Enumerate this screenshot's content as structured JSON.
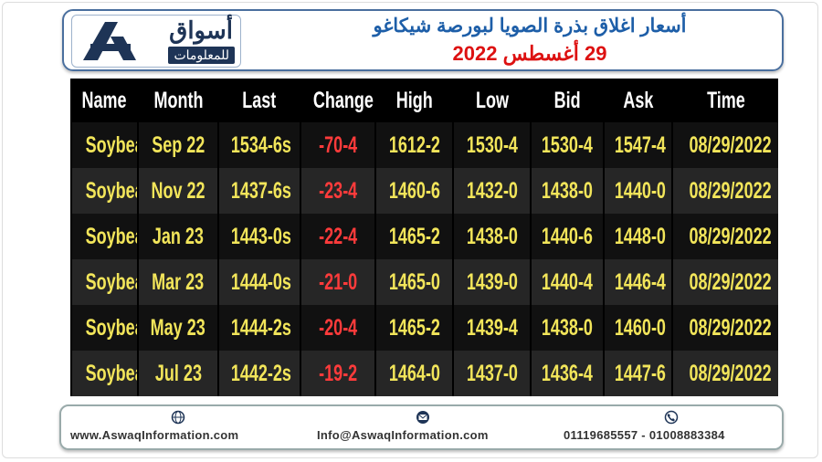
{
  "header": {
    "logo": {
      "name": "أسواق",
      "subtitle": "للمعلومات"
    },
    "title": "أسعار اغلاق بذرة الصويا لبورصة شيكاغو",
    "date": "29 أغسطس 2022"
  },
  "table": {
    "columns": [
      "Name",
      "Month",
      "Last",
      "Change",
      "High",
      "Low",
      "Bid",
      "Ask",
      "Time"
    ],
    "rows": [
      [
        "Soybean",
        "Sep 22",
        "1534-6s",
        "-70-4",
        "1612-2",
        "1530-4",
        "1530-4",
        "1547-4",
        "08/29/2022"
      ],
      [
        "Soybean",
        "Nov 22",
        "1437-6s",
        "-23-4",
        "1460-6",
        "1432-0",
        "1438-0",
        "1440-0",
        "08/29/2022"
      ],
      [
        "Soybean",
        "Jan 23",
        "1443-0s",
        "-22-4",
        "1465-2",
        "1438-0",
        "1440-6",
        "1448-0",
        "08/29/2022"
      ],
      [
        "Soybean",
        "Mar 23",
        "1444-0s",
        "-21-0",
        "1465-0",
        "1439-0",
        "1440-4",
        "1446-4",
        "08/29/2022"
      ],
      [
        "Soybean",
        "May 23",
        "1444-2s",
        "-20-4",
        "1465-2",
        "1439-4",
        "1438-0",
        "1460-0",
        "08/29/2022"
      ],
      [
        "Soybean",
        "Jul 23",
        "1442-2s",
        "-19-2",
        "1464-0",
        "1437-0",
        "1436-4",
        "1447-6",
        "08/29/2022"
      ]
    ]
  },
  "footer": {
    "website": "www.AswaqInformation.com",
    "email": "Info@AswaqInformation.com",
    "phones": "01119685557 - 01008883384"
  }
}
